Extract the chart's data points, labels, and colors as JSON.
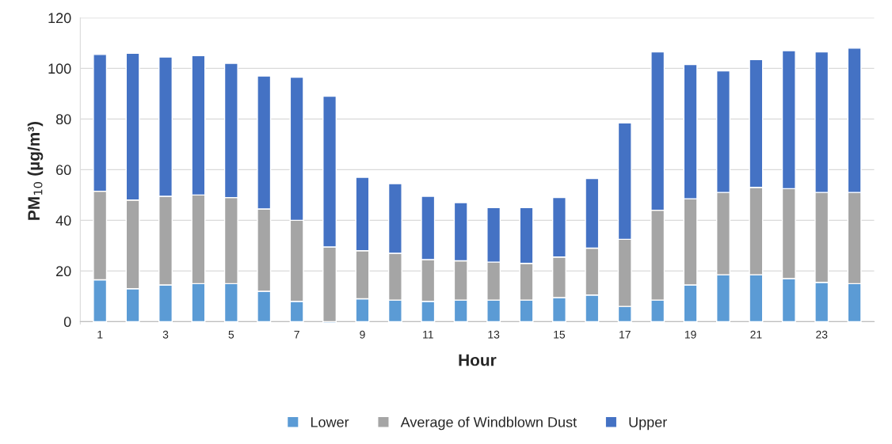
{
  "chart_data": {
    "type": "bar",
    "stacked": true,
    "xlabel": "Hour",
    "ylabel": "PM$_{10}$ (µg/m³)",
    "categories": [
      "1",
      null,
      "3",
      null,
      "5",
      null,
      "7",
      null,
      "9",
      null,
      "11",
      null,
      "13",
      null,
      "15",
      null,
      "17",
      null,
      "19",
      null,
      "21",
      null,
      "23",
      null
    ],
    "series": [
      {
        "name": "Lower",
        "color": "#5b9bd5",
        "values": [
          16.5,
          13,
          14.5,
          15,
          15,
          12,
          8,
          -0.5,
          9,
          8.5,
          8,
          8.5,
          8.5,
          8.5,
          9.5,
          10.5,
          6,
          8.5,
          14.5,
          18.5,
          18.5,
          17,
          15.5,
          15
        ]
      },
      {
        "name": "Average of Windblown Dust",
        "color": "#a5a5a5",
        "values": [
          35,
          35,
          35,
          35,
          34,
          32.5,
          32,
          29.5,
          19,
          18.5,
          16.5,
          15.5,
          15,
          14.5,
          16,
          18.5,
          26.5,
          35.5,
          34,
          32.5,
          34.5,
          35.5,
          35.5,
          36
        ]
      },
      {
        "name": "Upper",
        "color": "#4472c4",
        "values": [
          54,
          58,
          55,
          55,
          53,
          52.5,
          56.5,
          59.5,
          29,
          27.5,
          25,
          23,
          21.5,
          22,
          23.5,
          27.5,
          46,
          62.5,
          53,
          48,
          50.5,
          54.5,
          55.5,
          57
        ]
      }
    ],
    "ylim": [
      -1,
      120
    ],
    "yticks": [
      0,
      20,
      40,
      60,
      80,
      100,
      120
    ],
    "grid": "y",
    "legend": "bottom"
  }
}
